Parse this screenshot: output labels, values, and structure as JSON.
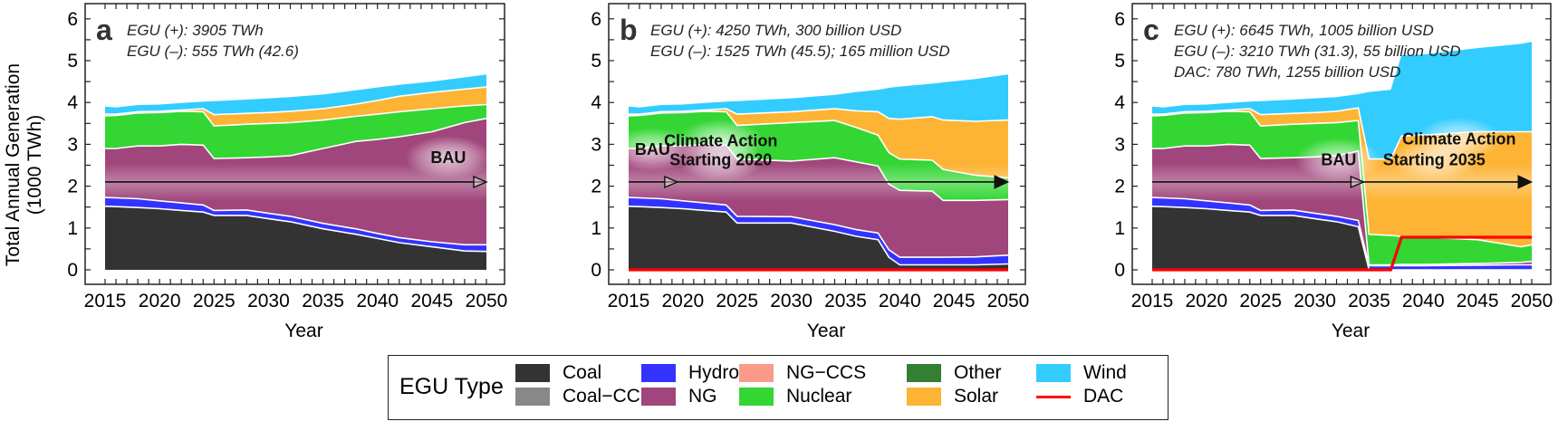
{
  "figure": {
    "ylabel_line1": "Total Annual Generation",
    "ylabel_line2": "(1000 TWh)",
    "legend": {
      "title": "EGU Type",
      "items": [
        {
          "label": "Coal",
          "color": "#333333",
          "kind": "fill"
        },
        {
          "label": "Coal−CCS",
          "color": "#888888",
          "kind": "fill"
        },
        {
          "label": "Hydro",
          "color": "#3333ff",
          "kind": "fill"
        },
        {
          "label": "NG",
          "color": "#a0467c",
          "kind": "fill"
        },
        {
          "label": "NG−CCS",
          "color": "#fa9b8a",
          "kind": "fill"
        },
        {
          "label": "Nuclear",
          "color": "#33d633",
          "kind": "fill"
        },
        {
          "label": "Other",
          "color": "#338033",
          "kind": "fill"
        },
        {
          "label": "Solar",
          "color": "#fdb333",
          "kind": "fill"
        },
        {
          "label": "Wind",
          "color": "#33ccff",
          "kind": "fill"
        },
        {
          "label": "DAC",
          "color": "#ff0000",
          "kind": "line"
        }
      ]
    }
  },
  "chart_data": [
    {
      "type": "area",
      "panel_letter": "a",
      "annotations": [
        "EGU (+): 3905 TWh",
        "EGU (–): 555 TWh (42.6)"
      ],
      "xlabel": "Year",
      "ylabel": "Total Annual Generation (1000 TWh)",
      "xlim": [
        2015,
        2050
      ],
      "ylim": [
        0,
        6
      ],
      "xticks": [
        2015,
        2020,
        2025,
        2030,
        2035,
        2040,
        2045,
        2050
      ],
      "yticks": [
        0,
        1,
        2,
        3,
        4,
        5,
        6
      ],
      "scenario_labels": [
        {
          "text": "BAU",
          "x": 2046.5,
          "y": 2.55
        }
      ],
      "arrow": {
        "y": 2.1,
        "from": 2015,
        "marker_at": 2050,
        "marker": "open"
      },
      "x": [
        2015,
        2016,
        2018,
        2020,
        2022,
        2024,
        2025,
        2028,
        2030,
        2032,
        2035,
        2038,
        2040,
        2042,
        2045,
        2048,
        2050
      ],
      "series": [
        {
          "name": "Coal",
          "values": [
            1.52,
            1.51,
            1.49,
            1.46,
            1.42,
            1.38,
            1.3,
            1.3,
            1.22,
            1.15,
            0.98,
            0.85,
            0.75,
            0.65,
            0.55,
            0.45,
            0.44
          ]
        },
        {
          "name": "Hydro",
          "values": [
            0.21,
            0.21,
            0.21,
            0.19,
            0.18,
            0.17,
            0.12,
            0.13,
            0.13,
            0.13,
            0.13,
            0.13,
            0.12,
            0.12,
            0.12,
            0.15,
            0.16
          ]
        },
        {
          "name": "NG",
          "values": [
            1.17,
            1.18,
            1.26,
            1.31,
            1.4,
            1.43,
            1.24,
            1.25,
            1.35,
            1.45,
            1.79,
            2.09,
            2.25,
            2.41,
            2.63,
            2.92,
            3.02
          ]
        },
        {
          "name": "Nuclear",
          "values": [
            0.78,
            0.79,
            0.79,
            0.8,
            0.79,
            0.8,
            0.78,
            0.8,
            0.8,
            0.79,
            0.68,
            0.6,
            0.6,
            0.6,
            0.55,
            0.4,
            0.33
          ]
        },
        {
          "name": "Solar",
          "values": [
            0.04,
            0.03,
            0.03,
            0.03,
            0.03,
            0.07,
            0.27,
            0.26,
            0.26,
            0.27,
            0.27,
            0.29,
            0.33,
            0.37,
            0.39,
            0.4,
            0.42
          ]
        },
        {
          "name": "Wind",
          "values": [
            0.18,
            0.16,
            0.16,
            0.16,
            0.17,
            0.17,
            0.32,
            0.33,
            0.34,
            0.34,
            0.34,
            0.33,
            0.31,
            0.27,
            0.26,
            0.28,
            0.3
          ]
        },
        {
          "name": "DAC",
          "values": null
        }
      ]
    },
    {
      "type": "area",
      "panel_letter": "b",
      "annotations": [
        "EGU (+): 4250 TWh, 300 billion USD",
        "EGU (–): 1525 TWh (45.5); 165 million USD"
      ],
      "xlabel": "Year",
      "ylabel": "",
      "xlim": [
        2015,
        2050
      ],
      "ylim": [
        0,
        6
      ],
      "xticks": [
        2015,
        2020,
        2025,
        2030,
        2035,
        2040,
        2045,
        2050
      ],
      "yticks": [
        0,
        1,
        2,
        3,
        4,
        5,
        6
      ],
      "scenario_labels": [
        {
          "text": "BAU",
          "x": 2017.2,
          "y": 2.75
        },
        {
          "text": "Climate Action",
          "x": 2023.5,
          "y": 2.95
        },
        {
          "text": "Starting 2020",
          "x": 2023.5,
          "y": 2.5
        }
      ],
      "arrow": {
        "y": 2.1,
        "from": 2015,
        "marker_at": 2019.5,
        "marker": "open",
        "end_marker_at": 2050,
        "end_marker": "filled"
      },
      "x": [
        2015,
        2016,
        2018,
        2020,
        2022,
        2024,
        2025,
        2030,
        2034,
        2036,
        2038,
        2039,
        2040,
        2043,
        2044,
        2047,
        2050
      ],
      "series": [
        {
          "name": "Coal",
          "values": [
            1.52,
            1.51,
            1.49,
            1.46,
            1.42,
            1.38,
            1.12,
            1.12,
            0.92,
            0.8,
            0.72,
            0.3,
            0.12,
            0.12,
            0.12,
            0.12,
            0.14
          ]
        },
        {
          "name": "Hydro",
          "values": [
            0.21,
            0.21,
            0.21,
            0.19,
            0.18,
            0.17,
            0.16,
            0.15,
            0.16,
            0.16,
            0.16,
            0.18,
            0.18,
            0.18,
            0.18,
            0.19,
            0.21
          ]
        },
        {
          "name": "NG",
          "values": [
            1.17,
            1.18,
            1.26,
            1.31,
            1.4,
            1.43,
            1.37,
            1.33,
            1.6,
            1.62,
            1.6,
            1.57,
            1.6,
            1.58,
            1.36,
            1.35,
            1.33
          ]
        },
        {
          "name": "Nuclear",
          "values": [
            0.78,
            0.79,
            0.79,
            0.8,
            0.79,
            0.8,
            0.8,
            0.92,
            0.89,
            0.82,
            0.74,
            0.75,
            0.75,
            0.74,
            0.74,
            0.6,
            0.52
          ]
        },
        {
          "name": "Solar",
          "values": [
            0.04,
            0.03,
            0.03,
            0.03,
            0.03,
            0.07,
            0.27,
            0.26,
            0.28,
            0.4,
            0.56,
            0.82,
            0.95,
            1.04,
            1.18,
            1.29,
            1.38
          ]
        },
        {
          "name": "Wind",
          "values": [
            0.18,
            0.16,
            0.16,
            0.16,
            0.17,
            0.17,
            0.31,
            0.32,
            0.33,
            0.45,
            0.52,
            0.73,
            0.78,
            0.79,
            0.9,
            1.01,
            1.09
          ]
        },
        {
          "name": "DAC",
          "values": [
            0,
            0,
            0,
            0,
            0,
            0,
            0,
            0,
            0,
            0,
            0,
            0,
            0,
            0,
            0,
            0,
            0
          ]
        }
      ]
    },
    {
      "type": "area",
      "panel_letter": "c",
      "annotations": [
        "EGU (+): 6645 TWh, 1005 billion USD",
        "EGU (–): 3210 TWh (31.3), 55 billion USD",
        "DAC: 780 TWh, 1255 billion USD"
      ],
      "xlabel": "Year",
      "ylabel": "",
      "xlim": [
        2015,
        2050
      ],
      "ylim": [
        0,
        6
      ],
      "xticks": [
        2015,
        2020,
        2025,
        2030,
        2035,
        2040,
        2045,
        2050
      ],
      "yticks": [
        0,
        1,
        2,
        3,
        4,
        5,
        6
      ],
      "scenario_labels": [
        {
          "text": "BAU",
          "x": 2032.2,
          "y": 2.5
        },
        {
          "text": "Climate Action",
          "x": 2043.3,
          "y": 3.0
        },
        {
          "text": "Starting 2035",
          "x": 2041.0,
          "y": 2.5
        }
      ],
      "arrow": {
        "y": 2.1,
        "from": 2015,
        "marker_at": 2034.5,
        "marker": "open",
        "end_marker_at": 2050,
        "end_marker": "filled"
      },
      "x": [
        2015,
        2016,
        2018,
        2020,
        2022,
        2024,
        2025,
        2028,
        2030,
        2032,
        2034,
        2035,
        2037,
        2038,
        2040,
        2045,
        2049,
        2050
      ],
      "series": [
        {
          "name": "Coal",
          "values": [
            1.52,
            1.51,
            1.49,
            1.46,
            1.42,
            1.38,
            1.3,
            1.3,
            1.22,
            1.15,
            1.03,
            0,
            0,
            0,
            0,
            0,
            0,
            0
          ]
        },
        {
          "name": "Hydro",
          "values": [
            0.21,
            0.21,
            0.21,
            0.19,
            0.18,
            0.17,
            0.12,
            0.13,
            0.13,
            0.13,
            0.15,
            0.1,
            0.1,
            0.1,
            0.1,
            0.11,
            0.12,
            0.12
          ]
        },
        {
          "name": "NG",
          "values": [
            1.17,
            1.18,
            1.26,
            1.31,
            1.4,
            1.43,
            1.24,
            1.25,
            1.35,
            1.45,
            1.66,
            0.02,
            0.02,
            0.03,
            0.03,
            0.04,
            0.06,
            0.08
          ]
        },
        {
          "name": "Nuclear",
          "values": [
            0.78,
            0.79,
            0.79,
            0.8,
            0.79,
            0.8,
            0.78,
            0.8,
            0.8,
            0.79,
            0.73,
            0.73,
            0.7,
            0.67,
            0.65,
            0.57,
            0.37,
            0.4
          ]
        },
        {
          "name": "Solar",
          "values": [
            0.04,
            0.03,
            0.03,
            0.03,
            0.03,
            0.07,
            0.27,
            0.26,
            0.26,
            0.27,
            0.3,
            1.8,
            1.83,
            2.4,
            2.44,
            2.58,
            2.75,
            2.7
          ]
        },
        {
          "name": "Wind",
          "values": [
            0.18,
            0.16,
            0.16,
            0.16,
            0.17,
            0.17,
            0.32,
            0.33,
            0.34,
            0.34,
            0.33,
            1.6,
            1.65,
            1.93,
            1.93,
            2.0,
            2.1,
            2.15
          ]
        },
        {
          "name": "DAC",
          "values": [
            0,
            0,
            0,
            0,
            0,
            0,
            0,
            0,
            0,
            0,
            0,
            0,
            0,
            0.78,
            0.78,
            0.78,
            0.78,
            0.78
          ]
        }
      ]
    }
  ]
}
